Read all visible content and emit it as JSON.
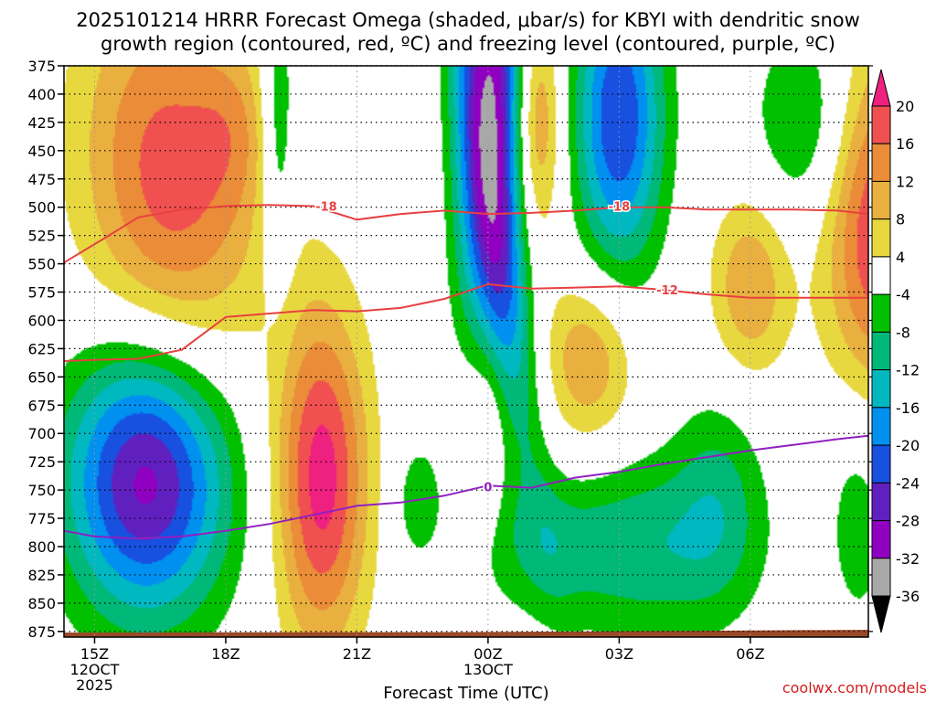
{
  "page": {
    "title_line1": "2025101214 HRRR Forecast Omega (shaded, μbar/s) for KBYI with dendritic snow",
    "title_line2": "growth region (contoured, red, ºC) and freezing level (contoured, purple, ºC)",
    "credit": "coolwx.com/models"
  },
  "chart_data": {
    "type": "heatmap",
    "xlabel": "Forecast Time (UTC)",
    "x_range_hours": [
      14.3,
      32.7
    ],
    "x_ticks": [
      {
        "hour": 15,
        "lines": [
          "15Z",
          "12OCT",
          "2025"
        ]
      },
      {
        "hour": 18,
        "lines": [
          "18Z"
        ]
      },
      {
        "hour": 21,
        "lines": [
          "21Z"
        ]
      },
      {
        "hour": 24,
        "lines": [
          "00Z",
          "13OCT"
        ]
      },
      {
        "hour": 27,
        "lines": [
          "03Z"
        ]
      },
      {
        "hour": 30,
        "lines": [
          "06Z"
        ]
      }
    ],
    "y_range_mb": [
      375,
      880
    ],
    "y_ticks": [
      375,
      400,
      425,
      450,
      475,
      500,
      525,
      550,
      575,
      600,
      625,
      650,
      675,
      700,
      725,
      750,
      775,
      800,
      825,
      850,
      875
    ],
    "colorbar": {
      "labels": [
        20,
        16,
        12,
        8,
        4,
        -4,
        -8,
        -12,
        -16,
        -20,
        -24,
        -28,
        -32,
        -36
      ],
      "colors": {
        "pos": [
          "#e8d840",
          "#e9b040",
          "#ea8c38",
          "#f05050",
          "#ee2080"
        ],
        "neg": [
          "#00c000",
          "#00b878",
          "#00b8c0",
          "#0090f0",
          "#1850e0",
          "#6020c0",
          "#9000c0",
          "#a8a8a8"
        ]
      }
    },
    "omega_features": [
      {
        "h": 16.7,
        "p": 475,
        "rh": 2.0,
        "rp": 175,
        "peak": 18,
        "rot": 0.15
      },
      {
        "h": 18.2,
        "p": 430,
        "rh": 0.9,
        "rp": 75,
        "peak": 6,
        "rot": 0
      },
      {
        "h": 20.2,
        "p": 740,
        "rh": 1.05,
        "rp": 150,
        "peak": 22,
        "rot": 0
      },
      {
        "h": 23.1,
        "p": 470,
        "rh": 1.2,
        "rp": 145,
        "peak": 3,
        "rot": 0
      },
      {
        "h": 25.05,
        "p": 425,
        "rh": 0.6,
        "rp": 115,
        "peak": 19,
        "rot": 0
      },
      {
        "h": 26.3,
        "p": 635,
        "rh": 1.05,
        "rp": 75,
        "peak": 12,
        "rot": 0
      },
      {
        "h": 32.9,
        "p": 520,
        "rh": 1.2,
        "rp": 160,
        "peak": 20,
        "rot": 0
      },
      {
        "h": 30.0,
        "p": 570,
        "rh": 0.9,
        "rp": 80,
        "peak": 12,
        "rot": 0
      },
      {
        "h": 23.9,
        "p": 660,
        "rh": 0.6,
        "rp": 70,
        "peak": 5.5,
        "rot": 0
      },
      {
        "h": 24.0,
        "p": 730,
        "rh": 0.3,
        "rp": 60,
        "peak": 5.5,
        "rot": 0
      },
      {
        "h": 16.2,
        "p": 740,
        "rh": 1.85,
        "rp": 120,
        "peak": -30,
        "rot": 0
      },
      {
        "h": 19.2,
        "p": 430,
        "rh": 0.4,
        "rp": 130,
        "peak": -10,
        "rot": 0
      },
      {
        "h": 24.1,
        "p": 420,
        "rh": 0.9,
        "rp": 210,
        "peak": -34,
        "rot": 0
      },
      {
        "h": 24.5,
        "p": 600,
        "rh": 0.55,
        "rp": 190,
        "peak": -8,
        "rot": 0.4
      },
      {
        "h": 27.0,
        "p": 420,
        "rh": 1.0,
        "rp": 135,
        "peak": -24,
        "rot": 0
      },
      {
        "h": 27.7,
        "p": 800,
        "rh": 2.2,
        "rp": 80,
        "peak": -11,
        "rot": 0
      },
      {
        "h": 31.3,
        "p": 425,
        "rh": 1.2,
        "rp": 90,
        "peak": -9,
        "rot": 0
      },
      {
        "h": 29.3,
        "p": 750,
        "rh": 1.0,
        "rp": 95,
        "peak": -7,
        "rot": 0
      },
      {
        "h": 32.5,
        "p": 760,
        "rh": 0.8,
        "rp": 120,
        "peak": -7,
        "rot": 0
      },
      {
        "h": 22.4,
        "p": 760,
        "rh": 0.55,
        "rp": 55,
        "peak": -7,
        "rot": 0
      },
      {
        "h": 25.2,
        "p": 800,
        "rh": 1.4,
        "rp": 60,
        "peak": -6,
        "rot": 0
      }
    ],
    "contours": [
      {
        "name": "-18",
        "color": "#e84040",
        "label_at": [
          [
            20.3,
            499
          ],
          [
            27.0,
            499
          ]
        ],
        "points": [
          [
            14.3,
            549
          ],
          [
            15.2,
            528
          ],
          [
            16.0,
            509
          ],
          [
            17.0,
            502
          ],
          [
            18.0,
            499
          ],
          [
            19.0,
            498
          ],
          [
            20.0,
            499
          ],
          [
            21.0,
            511
          ],
          [
            22.0,
            506
          ],
          [
            23.0,
            503
          ],
          [
            24.0,
            506
          ],
          [
            25.0,
            505
          ],
          [
            26.0,
            503
          ],
          [
            27.0,
            500
          ],
          [
            28.0,
            500
          ],
          [
            29.0,
            502
          ],
          [
            30.0,
            502
          ],
          [
            31.0,
            502
          ],
          [
            32.0,
            503
          ],
          [
            32.7,
            506
          ]
        ]
      },
      {
        "name": "-12",
        "color": "#e84040",
        "label_at": [
          [
            28.1,
            573
          ]
        ],
        "points": [
          [
            14.3,
            636
          ],
          [
            15.0,
            635
          ],
          [
            16.0,
            634
          ],
          [
            17.0,
            626
          ],
          [
            18.0,
            597
          ],
          [
            19.0,
            594
          ],
          [
            20.0,
            591
          ],
          [
            21.0,
            592
          ],
          [
            22.0,
            589
          ],
          [
            23.0,
            581
          ],
          [
            24.0,
            568
          ],
          [
            25.0,
            572
          ],
          [
            26.0,
            571
          ],
          [
            27.0,
            570
          ],
          [
            28.0,
            573
          ],
          [
            29.0,
            577
          ],
          [
            30.0,
            580
          ],
          [
            31.0,
            580
          ],
          [
            32.0,
            580
          ],
          [
            32.7,
            580
          ]
        ]
      },
      {
        "name": "0",
        "color": "#9020c0",
        "label_at": [
          [
            24.0,
            747
          ]
        ],
        "points": [
          [
            14.3,
            786
          ],
          [
            15.0,
            791
          ],
          [
            16.0,
            793
          ],
          [
            17.0,
            791
          ],
          [
            18.0,
            786
          ],
          [
            19.0,
            780
          ],
          [
            20.0,
            772
          ],
          [
            21.0,
            764
          ],
          [
            22.0,
            761
          ],
          [
            23.0,
            755
          ],
          [
            24.0,
            746
          ],
          [
            25.0,
            748
          ],
          [
            26.0,
            739
          ],
          [
            27.0,
            734
          ],
          [
            28.0,
            727
          ],
          [
            29.0,
            721
          ],
          [
            30.0,
            715
          ],
          [
            31.0,
            710
          ],
          [
            32.0,
            705
          ],
          [
            32.7,
            702
          ]
        ]
      }
    ]
  }
}
